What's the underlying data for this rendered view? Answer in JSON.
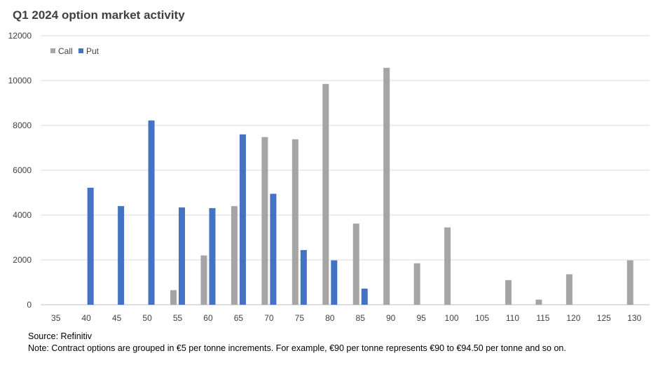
{
  "chart_data": {
    "type": "bar",
    "title": "Q1 2024 option market activity",
    "xlabel": "",
    "ylabel": "",
    "ylim": [
      0,
      12000
    ],
    "yticks": [
      0,
      2000,
      4000,
      6000,
      8000,
      10000,
      12000
    ],
    "categories": [
      "35",
      "40",
      "45",
      "50",
      "55",
      "60",
      "65",
      "70",
      "75",
      "80",
      "85",
      "90",
      "95",
      "100",
      "105",
      "110",
      "115",
      "120",
      "125",
      "130"
    ],
    "series": [
      {
        "name": "Call",
        "color": "#a5a5a5",
        "values": [
          0,
          0,
          0,
          0,
          650,
          2200,
          4400,
          7480,
          7380,
          9850,
          3620,
          10570,
          1850,
          3450,
          0,
          1100,
          230,
          1360,
          0,
          1980
        ]
      },
      {
        "name": "Put",
        "color": "#4472c4",
        "values": [
          0,
          5220,
          4400,
          8220,
          4340,
          4310,
          7600,
          4950,
          2440,
          1980,
          720,
          0,
          0,
          0,
          0,
          0,
          0,
          0,
          0,
          0
        ]
      }
    ],
    "legend": "top-left",
    "grid": true
  },
  "source": "Source: Refinitiv",
  "note": "Note: Contract options are grouped in €5 per tonne increments. For example, €90 per tonne represents €90 to €94.50 per tonne and so on."
}
